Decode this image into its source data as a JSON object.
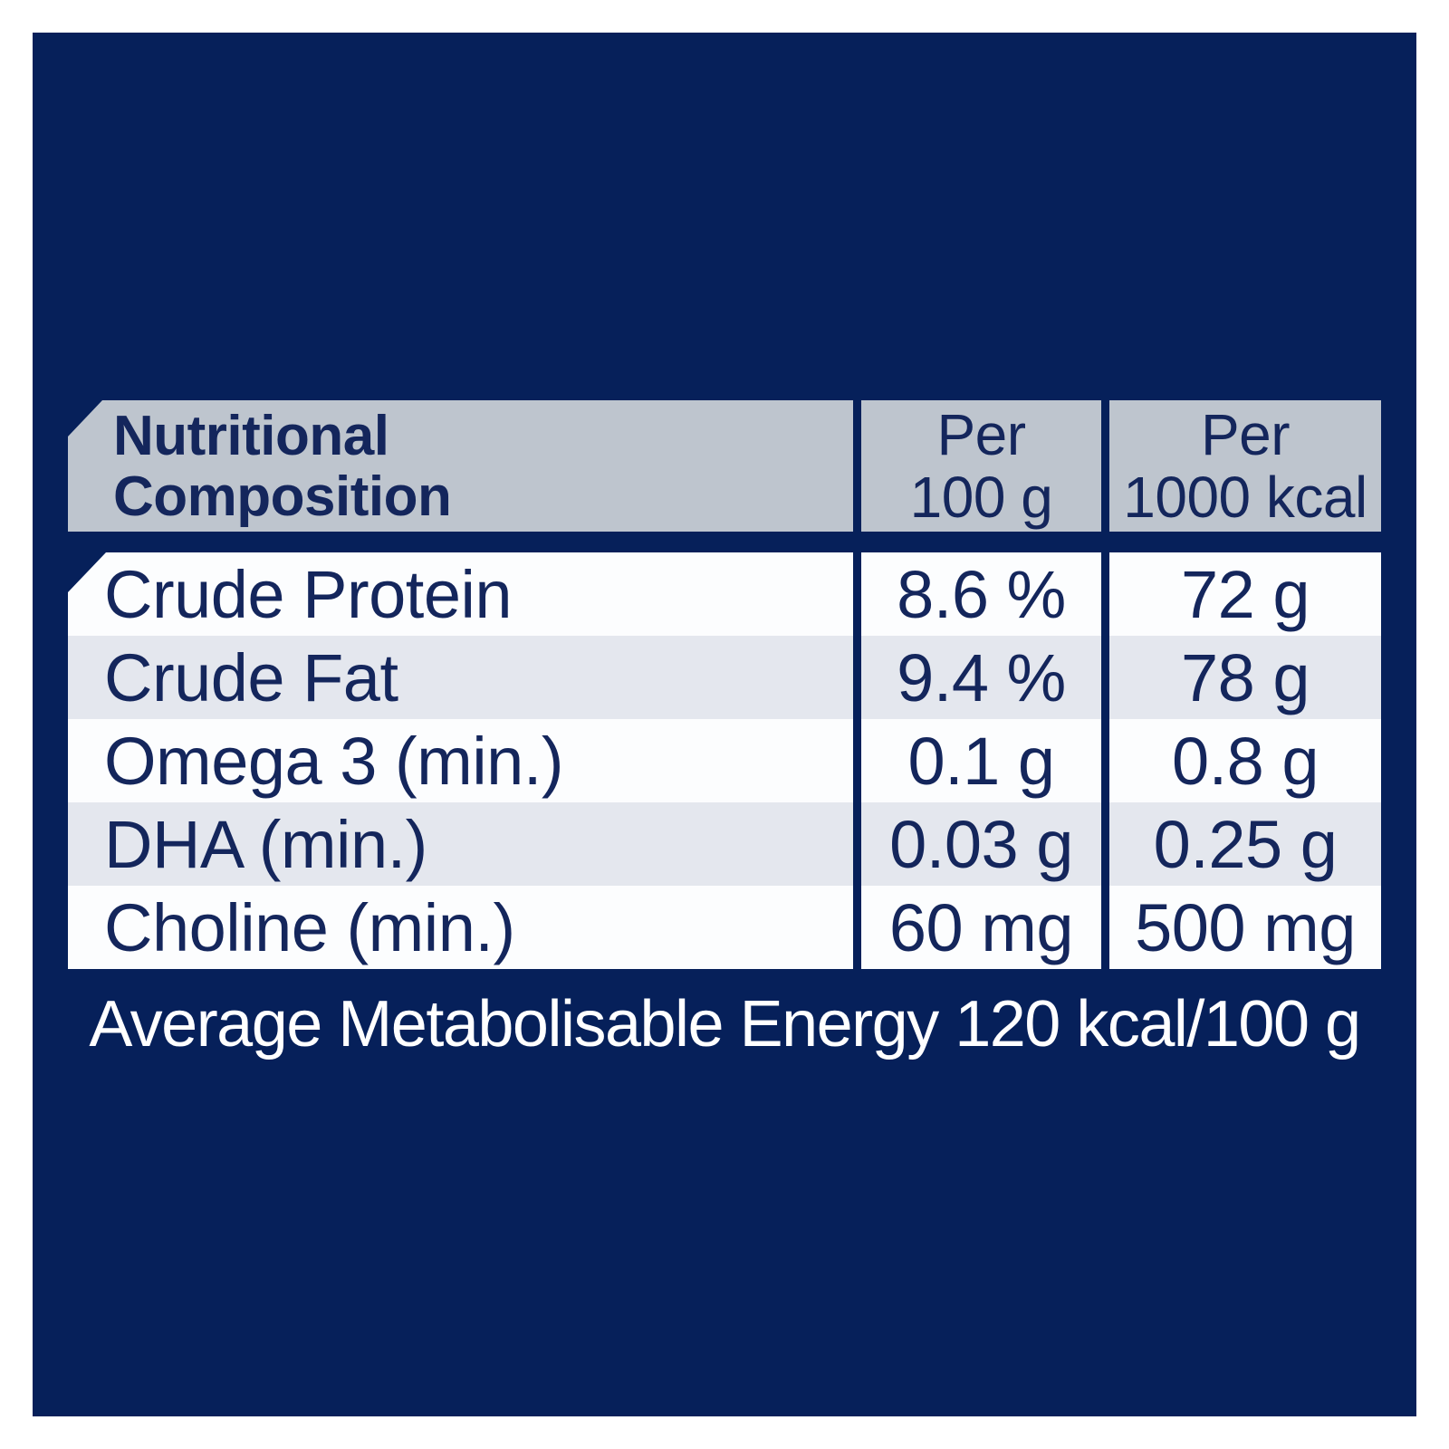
{
  "colors": {
    "panel": "#06205a",
    "header_cell": "#bec5ce",
    "row_white": "#fcfdfe",
    "row_alt": "#e4e7ee",
    "text_navy": "#14265c",
    "footer_text": "#ffffff"
  },
  "table": {
    "header": {
      "name_col": {
        "line1": "Nutritional",
        "line2": "Composition"
      },
      "per_100g": {
        "line1": "Per",
        "line2": "100 g"
      },
      "per_1000kcal": {
        "line1": "Per",
        "line2": "1000 kcal"
      }
    },
    "rows": [
      {
        "label": "Crude Protein",
        "per_100g": "8.6 %",
        "per_1000kcal": "72 g"
      },
      {
        "label": "Crude Fat",
        "per_100g": "9.4 %",
        "per_1000kcal": "78 g"
      },
      {
        "label": "Omega 3 (min.)",
        "per_100g": "0.1 g",
        "per_1000kcal": "0.8 g"
      },
      {
        "label": "DHA (min.)",
        "per_100g": "0.03 g",
        "per_1000kcal": "0.25 g"
      },
      {
        "label": "Choline (min.)",
        "per_100g": "60 mg",
        "per_1000kcal": "500 mg"
      }
    ]
  },
  "footer": {
    "text": "Average Metabolisable Energy 120 kcal/100 g"
  }
}
